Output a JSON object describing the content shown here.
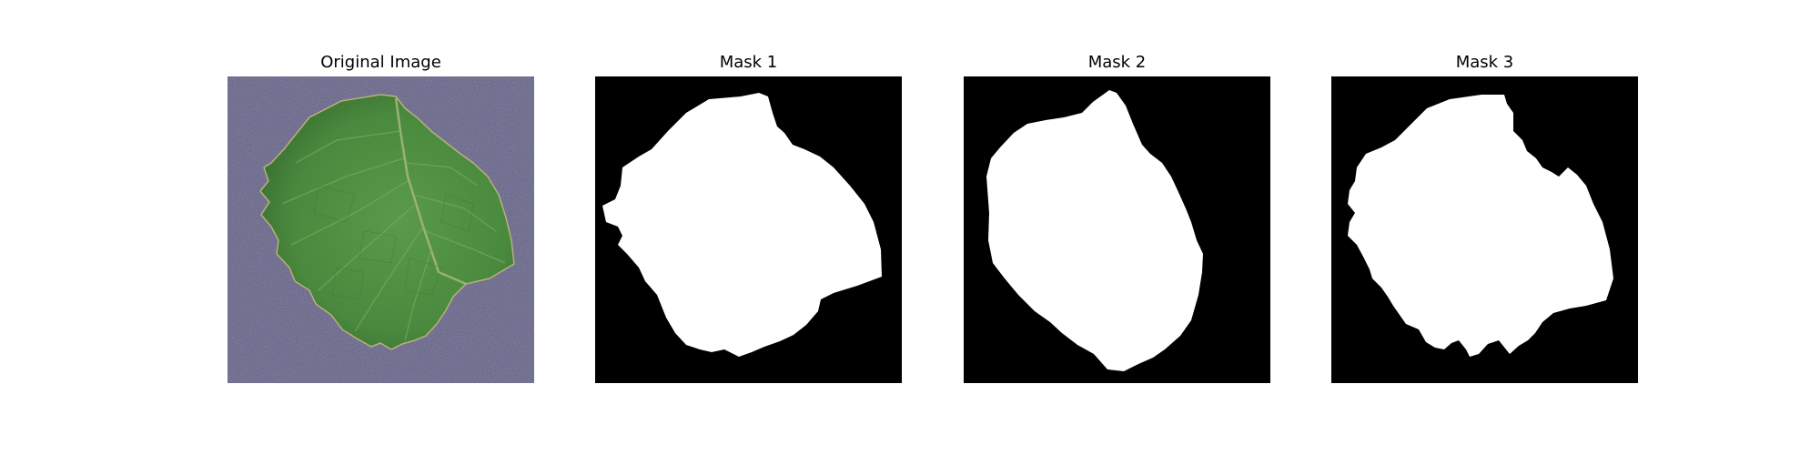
{
  "figure": {
    "panels": [
      {
        "title": "Original Image"
      },
      {
        "title": "Mask 1"
      },
      {
        "title": "Mask 2"
      },
      {
        "title": "Mask 3"
      }
    ]
  },
  "colors": {
    "background": "#ffffff",
    "paper": "#7f7d9e",
    "leaf": "#4f8c42",
    "leaf_dark": "#3b6e31",
    "vein": "#a8b97a",
    "mask_background": "#000000",
    "mask_foreground": "#ffffff"
  }
}
